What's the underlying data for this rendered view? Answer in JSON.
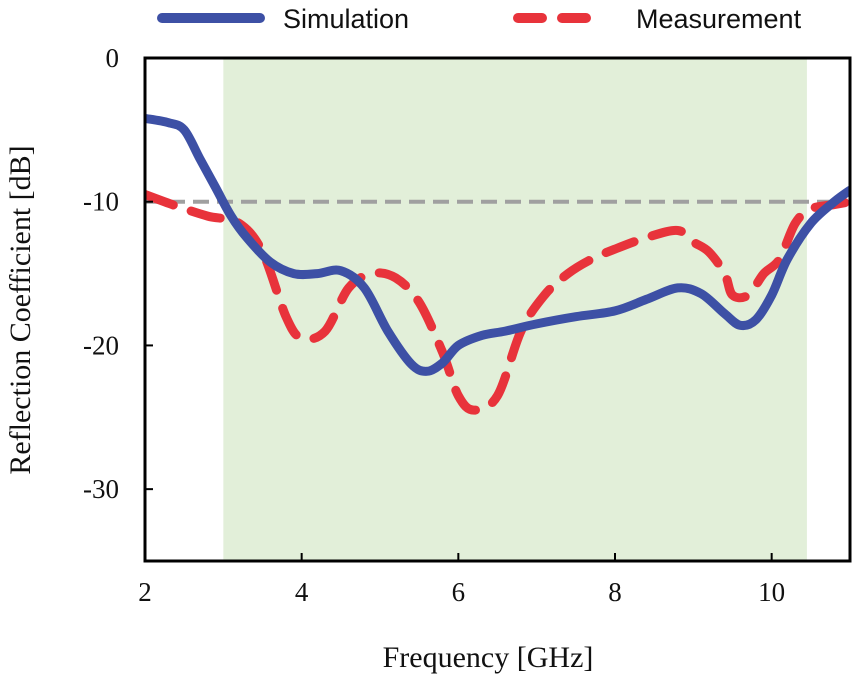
{
  "chart_data": {
    "type": "line",
    "xlabel": "Frequency [GHz]",
    "ylabel": "Reflection Coefficient [dB]",
    "xlim": [
      2,
      11
    ],
    "ylim": [
      -35,
      0
    ],
    "xticks": [
      2,
      4,
      6,
      8,
      10
    ],
    "yticks": [
      0,
      -10,
      -20,
      -30
    ],
    "grid": false,
    "legend_position": "top",
    "shaded_band": {
      "x": [
        3.0,
        10.45
      ],
      "color": "#e2efd9"
    },
    "reference_line": {
      "y": -10,
      "color": "#a0a0a0",
      "style": "dashed"
    },
    "series": [
      {
        "name": "Simulation",
        "color": "#3d50a5",
        "style": "solid",
        "x": [
          2.0,
          2.3,
          2.5,
          2.7,
          2.9,
          3.1,
          3.3,
          3.6,
          3.9,
          4.2,
          4.5,
          4.8,
          5.1,
          5.4,
          5.6,
          5.8,
          6.0,
          6.3,
          6.6,
          7.0,
          7.5,
          8.0,
          8.4,
          8.8,
          9.1,
          9.4,
          9.6,
          9.8,
          10.0,
          10.2,
          10.5,
          10.8,
          11.0
        ],
        "y": [
          -4.2,
          -4.5,
          -5.0,
          -7.0,
          -9.0,
          -11.0,
          -12.5,
          -14.2,
          -15.0,
          -15.0,
          -14.8,
          -16.0,
          -19.0,
          -21.3,
          -21.8,
          -21.2,
          -20.0,
          -19.3,
          -19.0,
          -18.5,
          -18.0,
          -17.6,
          -16.8,
          -16.0,
          -16.4,
          -17.8,
          -18.6,
          -18.2,
          -16.5,
          -14.0,
          -11.5,
          -10.0,
          -9.2
        ]
      },
      {
        "name": "Measurement",
        "color": "#e8333b",
        "style": "dashed",
        "x": [
          2.0,
          2.4,
          2.8,
          3.2,
          3.5,
          3.8,
          4.0,
          4.3,
          4.6,
          4.9,
          5.2,
          5.5,
          5.8,
          6.0,
          6.2,
          6.5,
          6.8,
          7.1,
          7.4,
          7.7,
          8.0,
          8.4,
          8.8,
          9.0,
          9.2,
          9.4,
          9.5,
          9.7,
          9.9,
          10.1,
          10.3,
          10.5,
          10.8,
          11.0
        ],
        "y": [
          -9.5,
          -10.3,
          -11.0,
          -11.5,
          -13.5,
          -18.0,
          -19.5,
          -19.0,
          -16.0,
          -15.0,
          -15.3,
          -17.0,
          -20.5,
          -23.5,
          -24.5,
          -23.5,
          -19.0,
          -16.5,
          -15.0,
          -14.0,
          -13.3,
          -12.5,
          -12.0,
          -12.8,
          -13.5,
          -15.0,
          -16.5,
          -16.5,
          -15.0,
          -14.0,
          -11.5,
          -10.5,
          -10.2,
          -10.0
        ]
      }
    ]
  }
}
